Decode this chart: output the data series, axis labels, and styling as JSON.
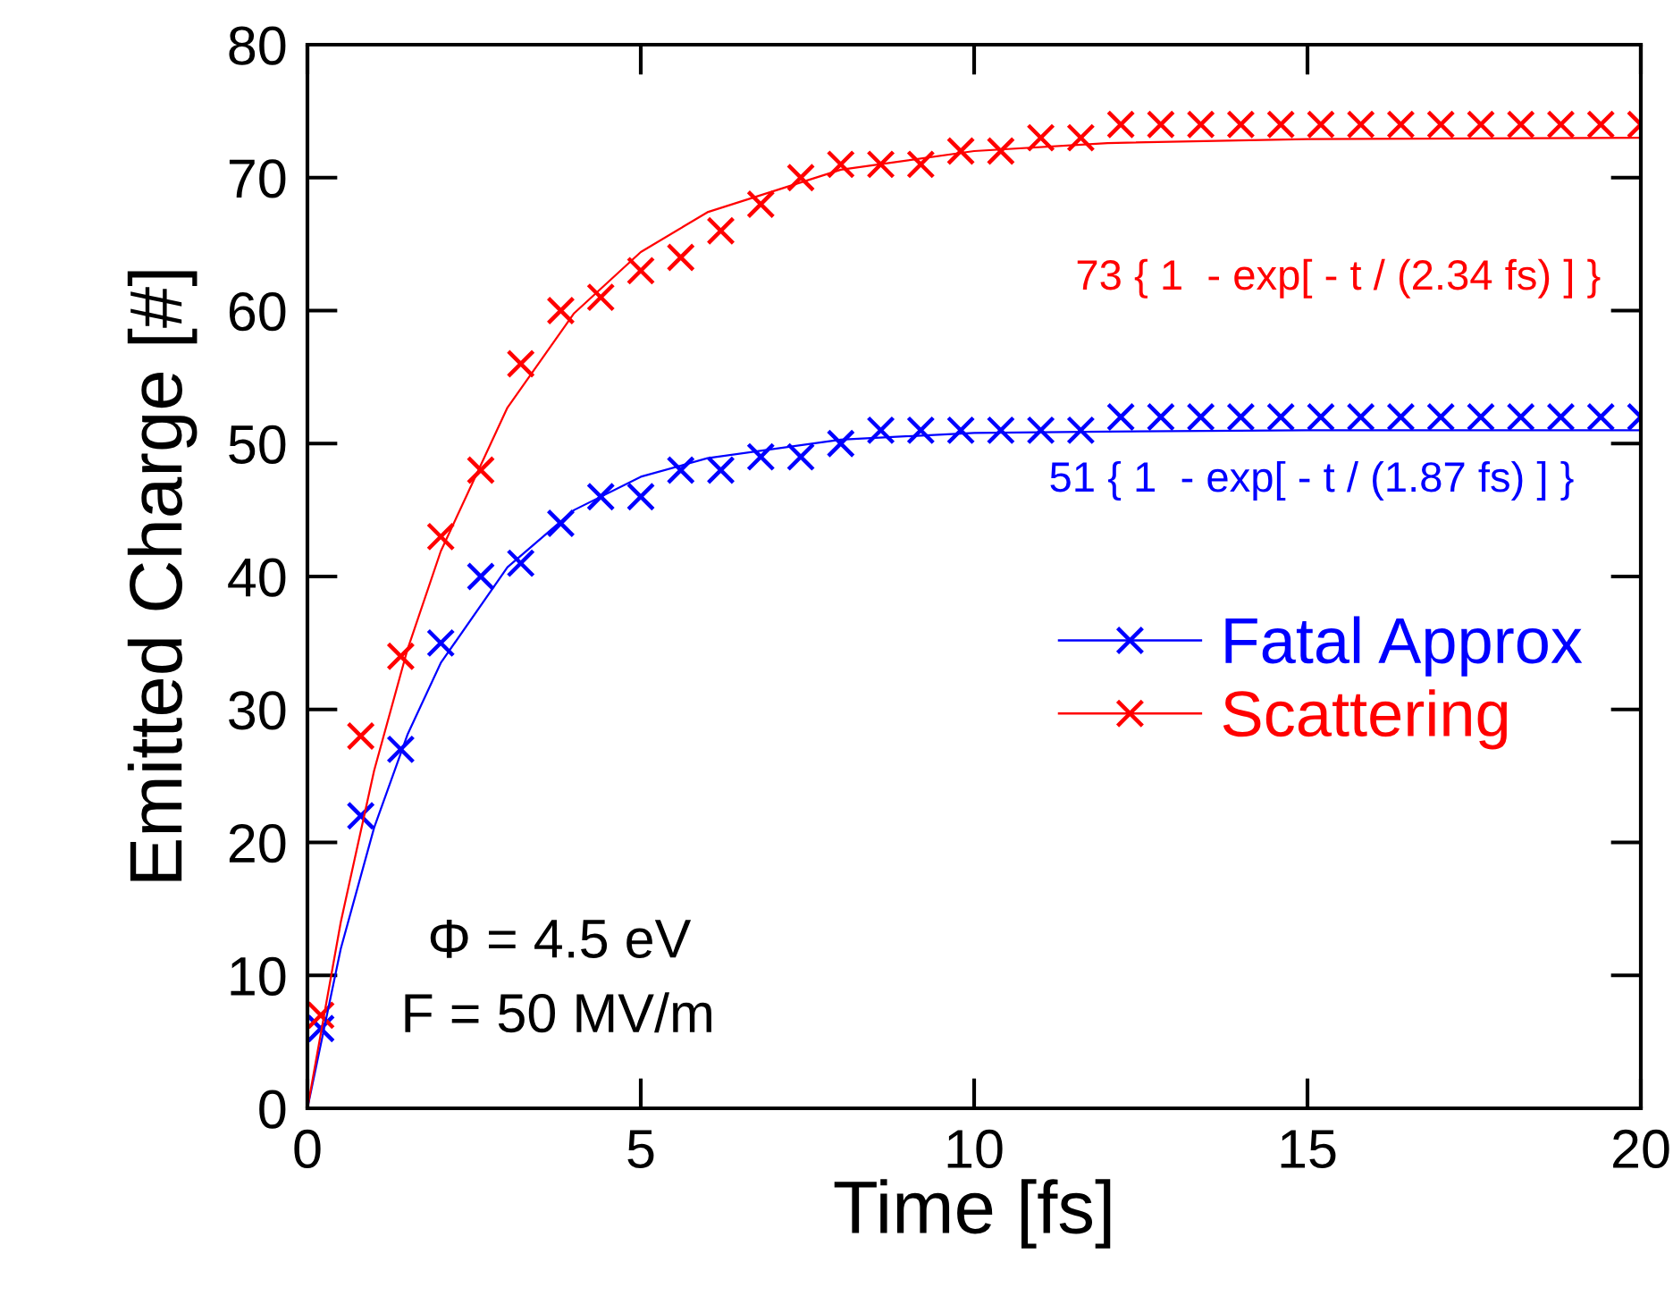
{
  "chart_data": {
    "type": "scatter",
    "xlabel": "Time [fs]",
    "ylabel": "Emitted Charge [#]",
    "xlim": [
      0,
      20
    ],
    "xticks": [
      0,
      5,
      10,
      15,
      20
    ],
    "ylim": [
      0,
      80
    ],
    "yticks": [
      0,
      10,
      20,
      30,
      40,
      50,
      60,
      70,
      80
    ],
    "grid": false,
    "legend": "right",
    "marker": "cross",
    "x": [
      0.2,
      0.8,
      1.4,
      2.0,
      2.6,
      3.2,
      3.8,
      4.4,
      5.0,
      5.6,
      6.2,
      6.8,
      7.4,
      8.0,
      8.6,
      9.2,
      9.8,
      10.4,
      11.0,
      11.6,
      12.2,
      12.8,
      13.4,
      14.0,
      14.6,
      15.2,
      15.8,
      16.4,
      17.0,
      17.6,
      18.2,
      18.8,
      19.4,
      20.0
    ],
    "series": [
      {
        "name": "Fatal Approx",
        "color": "#0000ff",
        "values": [
          6,
          22,
          27,
          35,
          40,
          41,
          44,
          46,
          46,
          48,
          48,
          49,
          49,
          50,
          51,
          51,
          51,
          51,
          51,
          51,
          52,
          52,
          52,
          52,
          52,
          52,
          52,
          52,
          52,
          52,
          52,
          52,
          52,
          52
        ]
      },
      {
        "name": "Scattering",
        "color": "#ff0000",
        "values": [
          7,
          28,
          34,
          43,
          48,
          56,
          60,
          61,
          63,
          64,
          66,
          68,
          70,
          71,
          71,
          71,
          72,
          72,
          73,
          73,
          74,
          74,
          74,
          74,
          74,
          74,
          74,
          74,
          74,
          74,
          74,
          74,
          74,
          74
        ]
      },
      {
        "type": "line",
        "marker": "none",
        "color": "#0000ff",
        "x": [
          0,
          0.5,
          1,
          1.5,
          2,
          3,
          4,
          5,
          6,
          8,
          10,
          12,
          15,
          20
        ],
        "values": [
          0,
          12.0,
          21.1,
          28.1,
          33.5,
          40.7,
          45.0,
          47.5,
          48.9,
          50.3,
          50.8,
          50.9,
          51.0,
          51.0
        ]
      },
      {
        "type": "line",
        "marker": "none",
        "color": "#ff0000",
        "x": [
          0,
          0.5,
          1,
          1.5,
          2,
          3,
          4,
          5,
          6,
          8,
          10,
          12,
          15,
          20
        ],
        "values": [
          0,
          14.0,
          25.4,
          34.5,
          41.9,
          52.7,
          59.8,
          64.4,
          67.4,
          70.6,
          72.0,
          72.6,
          72.9,
          73.0
        ]
      }
    ],
    "annotations": [
      "73 { 1  - exp[ - t / (2.34 fs) ] }",
      "51 { 1  - exp[ - t / (1.87 fs) ] }",
      "Φ = 4.5 eV",
      "F = 50 MV/m"
    ]
  }
}
